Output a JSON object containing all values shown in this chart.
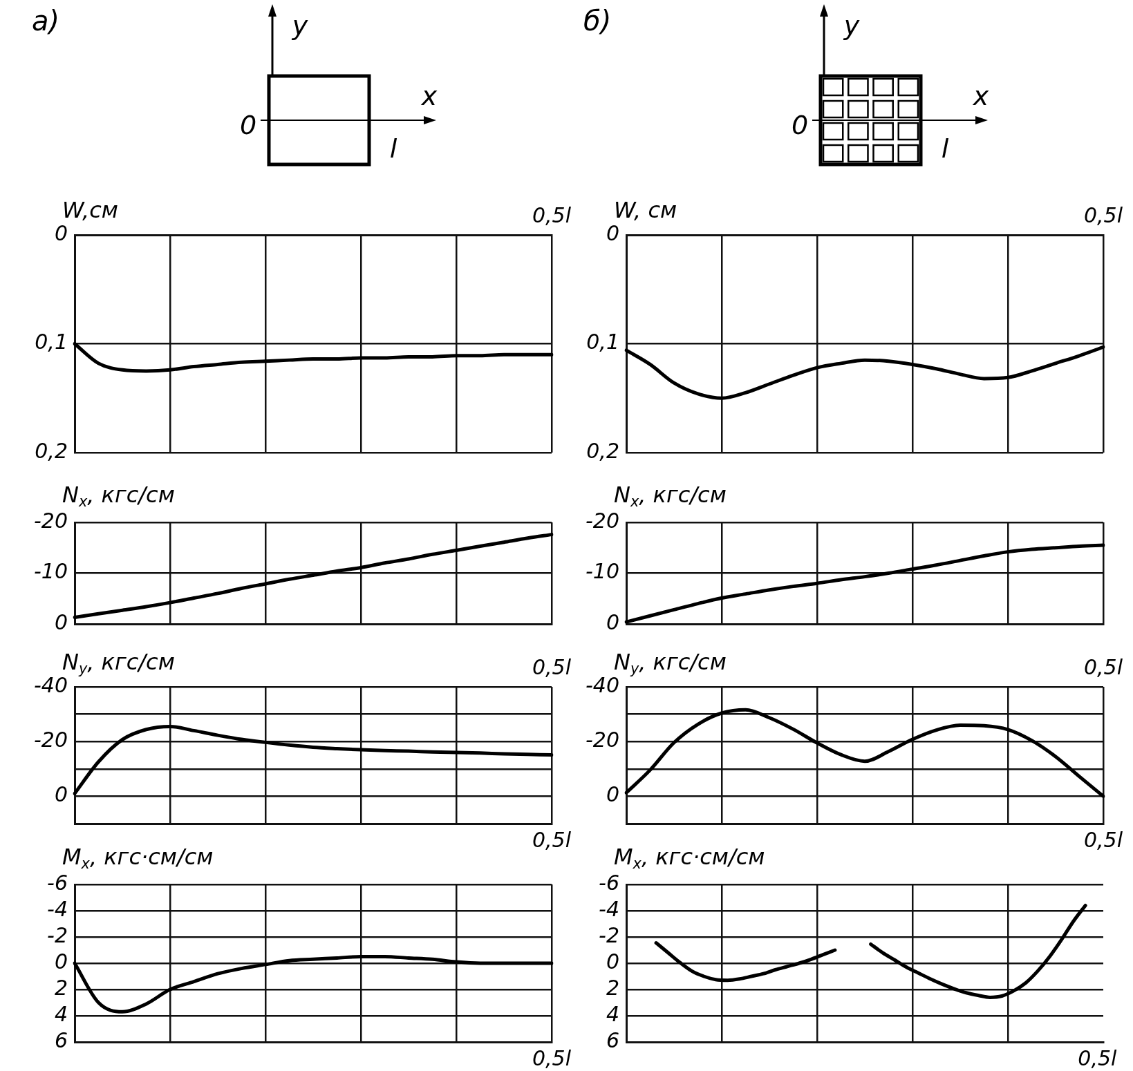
{
  "chart_data": [
    {
      "type": "line",
      "title": "а)",
      "annotations": [
        "y",
        "x",
        "0",
        "l"
      ],
      "ylabel": "W,см",
      "color": "#000000",
      "categories": [
        null,
        null,
        null,
        null,
        null,
        null,
        null,
        null,
        null,
        null,
        null,
        null,
        null,
        null,
        null,
        null,
        null,
        null,
        null,
        null,
        "0,5l"
      ],
      "values": [
        0.1,
        0.118,
        0.124,
        0.125,
        0.124,
        0.121,
        0.119,
        0.117,
        0.116,
        0.115,
        0.114,
        0.114,
        0.113,
        0.113,
        0.112,
        0.112,
        0.111,
        0.111,
        0.11,
        0.11,
        0.11
      ],
      "ylim": [
        0.2,
        0
      ],
      "yticks": [
        0,
        {
          "value": 0.1,
          "label": "0,1"
        },
        {
          "value": 0.2,
          "label": "0,2"
        }
      ],
      "grid": true
    },
    {
      "type": "line",
      "title": "б)",
      "annotations": [
        "y",
        "x",
        "0",
        "l"
      ],
      "ylabel": "W, см",
      "color": "#000000",
      "categories": [
        null,
        null,
        null,
        null,
        null,
        null,
        null,
        null,
        null,
        null,
        null,
        null,
        null,
        null,
        null,
        null,
        null,
        null,
        null,
        null,
        "0,5l"
      ],
      "values": [
        0.106,
        0.119,
        0.136,
        0.146,
        0.15,
        0.145,
        0.137,
        0.129,
        0.122,
        0.118,
        0.115,
        0.116,
        0.119,
        0.123,
        0.128,
        0.132,
        0.131,
        0.125,
        0.118,
        0.111,
        0.103
      ],
      "ylim": [
        0.2,
        0
      ],
      "yticks": [
        0,
        {
          "value": 0.1,
          "label": "0,1"
        },
        {
          "value": 0.2,
          "label": "0,2"
        }
      ],
      "grid": true
    },
    {
      "type": "line",
      "ylabel": "N$_{x}$, кгс/см",
      "color": "#000000",
      "categories": [
        null,
        null,
        null,
        null,
        null,
        null,
        null,
        null,
        null,
        null,
        null,
        null,
        null,
        null,
        null,
        null,
        null,
        null,
        null,
        null,
        null
      ],
      "values": [
        -1.3,
        -2,
        -2.7,
        -3.4,
        -4.2,
        -5.1,
        -6,
        -7,
        -7.9,
        -8.8,
        -9.6,
        -10.4,
        -11.1,
        -12,
        -12.8,
        -13.7,
        -14.5,
        -15.3,
        -16.1,
        -16.9,
        -17.6
      ],
      "ylim": [
        0,
        -20
      ],
      "yticks": [
        {
          "value": -20,
          "label": "-20"
        },
        {
          "value": -10,
          "label": "-10"
        },
        0
      ],
      "grid": true
    },
    {
      "type": "line",
      "ylabel": "N$_{x}$, кгс/см",
      "color": "#000000",
      "categories": [
        null,
        null,
        null,
        null,
        null,
        null,
        null,
        null,
        null,
        null,
        null,
        null,
        null,
        null,
        null,
        null,
        null,
        null,
        null,
        null,
        null
      ],
      "values": [
        -0.4,
        -1.6,
        -2.8,
        -4,
        -5.1,
        -5.9,
        -6.7,
        -7.4,
        -8,
        -8.7,
        -9.3,
        -10,
        -10.8,
        -11.6,
        -12.5,
        -13.4,
        -14.2,
        -14.7,
        -15,
        -15.3,
        -15.5
      ],
      "ylim": [
        0,
        -20
      ],
      "yticks": [
        {
          "value": -20,
          "label": "-20"
        },
        {
          "value": -10,
          "label": "-10"
        },
        0
      ],
      "grid": true
    },
    {
      "type": "line",
      "ylabel": "N$_{y}$, кгс/см",
      "annotations": [
        "0,5l"
      ],
      "color": "#000000",
      "categories": [
        null,
        null,
        null,
        null,
        null,
        null,
        null,
        null,
        null,
        null,
        null,
        null,
        null,
        null,
        null,
        null,
        null,
        null,
        null,
        null,
        "0,5l"
      ],
      "values": [
        -1,
        -12.6,
        -20.7,
        -24.4,
        -25.5,
        -24,
        -22.3,
        -20.8,
        -19.7,
        -18.7,
        -17.9,
        -17.4,
        -17,
        -16.7,
        -16.5,
        -16.2,
        -16,
        -15.8,
        -15.5,
        -15.3,
        -15.1
      ],
      "ylim": [
        10,
        -40
      ],
      "yticks": [
        {
          "value": -40,
          "label": "-40"
        },
        {
          "value": -30,
          "label": null
        },
        {
          "value": -20,
          "label": "-20"
        },
        {
          "value": -10,
          "label": null
        },
        0
      ],
      "grid": true
    },
    {
      "type": "line",
      "ylabel": "N$_{y}$, кгс/см",
      "annotations": [
        "0,5l"
      ],
      "color": "#000000",
      "categories": [
        null,
        null,
        null,
        null,
        null,
        null,
        null,
        null,
        null,
        null,
        null,
        null,
        null,
        null,
        null,
        null,
        null,
        null,
        null,
        null,
        "0,5l"
      ],
      "values": [
        -1.3,
        -9.6,
        -19.6,
        -26.3,
        -30.4,
        -31.6,
        -28.7,
        -24.5,
        -19.5,
        -15.2,
        -12.8,
        -16.4,
        -20.8,
        -24.2,
        -26,
        -25.8,
        -24.4,
        -20.4,
        -14.5,
        -7.2,
        0
      ],
      "ylim": [
        10,
        -40
      ],
      "yticks": [
        {
          "value": -40,
          "label": "-40"
        },
        {
          "value": -30,
          "label": null
        },
        {
          "value": -20,
          "label": "-20"
        },
        {
          "value": -10,
          "label": null
        },
        0
      ],
      "grid": true
    },
    {
      "type": "line",
      "ylabel": "M$_{x}$, кгс·см/см",
      "color": "#000000",
      "categories": [
        null,
        null,
        null,
        null,
        null,
        null,
        null,
        null,
        null,
        null,
        null,
        null,
        null,
        null,
        null,
        null,
        null,
        null,
        null,
        null,
        "0,5l"
      ],
      "values": [
        0,
        3,
        3.7,
        3.1,
        2,
        1.4,
        0.8,
        0.4,
        0.1,
        -0.2,
        -0.3,
        -0.4,
        -0.5,
        -0.5,
        -0.4,
        -0.3,
        -0.1,
        0,
        0,
        0,
        0
      ],
      "ylim": [
        6,
        -6
      ],
      "yticks": [
        {
          "value": -6,
          "label": "-6"
        },
        {
          "value": -4,
          "label": "-4"
        },
        {
          "value": -2,
          "label": "-2"
        },
        0,
        2,
        4,
        6
      ],
      "grid": true
    },
    {
      "type": "line",
      "ylabel": "M$_{x}$, кгс·см/см",
      "color": "#000000",
      "categories": [
        null,
        null,
        null,
        null,
        null,
        null,
        null,
        null,
        null,
        null,
        null,
        null,
        null,
        null,
        null,
        null,
        null,
        null,
        null,
        null,
        null,
        null,
        null,
        null,
        null,
        null,
        null,
        null,
        null,
        null,
        null,
        null,
        null,
        null,
        null,
        null,
        null,
        null,
        null,
        "0,5l"
      ],
      "values": [
        null,
        null,
        -1.55,
        -0.8,
        -0.05,
        0.6,
        1,
        1.25,
        1.3,
        1.2,
        1,
        0.8,
        0.5,
        0.25,
        0,
        -0.3,
        -0.65,
        -1,
        null,
        null,
        -1.45,
        -0.8,
        -0.25,
        0.3,
        0.75,
        1.2,
        1.6,
        1.95,
        2.25,
        2.45,
        2.6,
        2.5,
        2.1,
        1.5,
        0.6,
        -0.5,
        -1.8,
        -3.2,
        -4.4,
        null
      ],
      "ylim": [
        6,
        -6
      ],
      "yticks": [
        {
          "value": -6,
          "label": "-6"
        },
        {
          "value": -4,
          "label": "-4"
        },
        {
          "value": -2,
          "label": "-2"
        },
        0,
        2,
        4,
        6
      ],
      "grid": true
    }
  ]
}
